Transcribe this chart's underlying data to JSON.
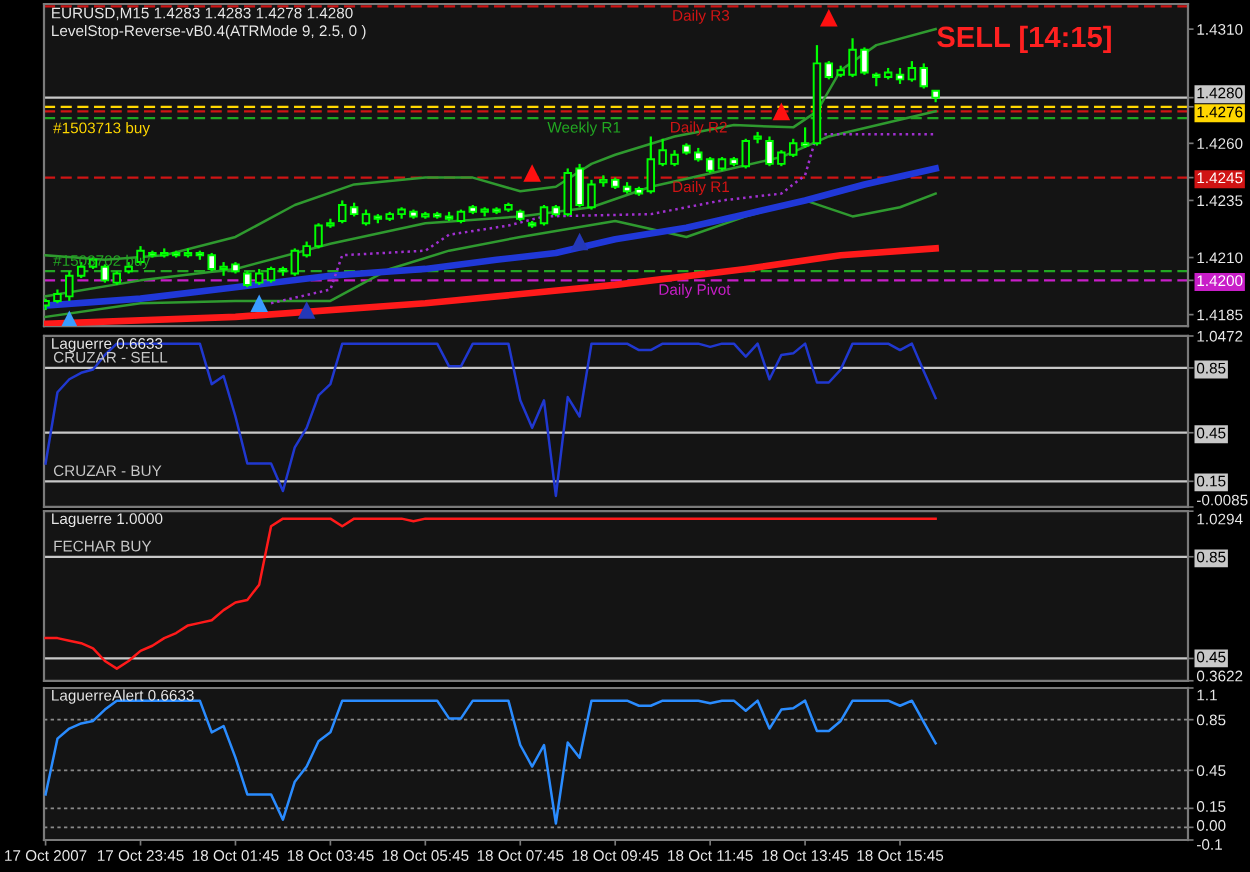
{
  "chart_data": [
    {
      "type": "candlestick",
      "title": "EURUSD,M15 1.4283 1.4283 1.4278 1.4280",
      "subtitle": "LevelStop-Reverse-vB0.4(ATRMode 9, 2.5, 0 )",
      "color": "#00ff00",
      "x": [
        "2007-10-17T21:45",
        "2007-10-17T22:00",
        "2007-10-17T22:15",
        "2007-10-17T22:30",
        "2007-10-17T22:45",
        "2007-10-17T23:00",
        "2007-10-17T23:15",
        "2007-10-17T23:30",
        "2007-10-17T23:45",
        "2007-10-18T00:00",
        "2007-10-18T00:15",
        "2007-10-18T00:30",
        "2007-10-18T00:45",
        "2007-10-18T01:00",
        "2007-10-18T01:15",
        "2007-10-18T01:30",
        "2007-10-18T01:45",
        "2007-10-18T02:00",
        "2007-10-18T02:15",
        "2007-10-18T02:30",
        "2007-10-18T02:45",
        "2007-10-18T03:00",
        "2007-10-18T03:15",
        "2007-10-18T03:30",
        "2007-10-18T03:45",
        "2007-10-18T04:00",
        "2007-10-18T04:15",
        "2007-10-18T04:30",
        "2007-10-18T04:45",
        "2007-10-18T05:00",
        "2007-10-18T05:15",
        "2007-10-18T05:30",
        "2007-10-18T05:45",
        "2007-10-18T06:00",
        "2007-10-18T06:15",
        "2007-10-18T06:30",
        "2007-10-18T06:45",
        "2007-10-18T07:00",
        "2007-10-18T07:15",
        "2007-10-18T07:30",
        "2007-10-18T07:45",
        "2007-10-18T08:00",
        "2007-10-18T08:15",
        "2007-10-18T08:30",
        "2007-10-18T08:45",
        "2007-10-18T09:00",
        "2007-10-18T09:15",
        "2007-10-18T09:30",
        "2007-10-18T09:45",
        "2007-10-18T10:00",
        "2007-10-18T10:15",
        "2007-10-18T10:30",
        "2007-10-18T10:45",
        "2007-10-18T11:00",
        "2007-10-18T11:15",
        "2007-10-18T11:30",
        "2007-10-18T11:45",
        "2007-10-18T12:00",
        "2007-10-18T12:15",
        "2007-10-18T12:30",
        "2007-10-18T12:45",
        "2007-10-18T13:00",
        "2007-10-18T13:15",
        "2007-10-18T13:30",
        "2007-10-18T13:45",
        "2007-10-18T14:00",
        "2007-10-18T14:15",
        "2007-10-18T14:30",
        "2007-10-18T14:45",
        "2007-10-18T15:00",
        "2007-10-18T15:15",
        "2007-10-18T15:30",
        "2007-10-18T15:45",
        "2007-10-18T16:00",
        "2007-10-18T16:15",
        "2007-10-18T16:30"
      ],
      "ohlc": [
        [
          1.4189,
          1.4192,
          1.4187,
          1.4191
        ],
        [
          1.4191,
          1.4196,
          1.419,
          1.4194
        ],
        [
          1.4193,
          1.4204,
          1.4191,
          1.4202
        ],
        [
          1.4202,
          1.4208,
          1.4201,
          1.4206
        ],
        [
          1.4206,
          1.421,
          1.4205,
          1.4209
        ],
        [
          1.4206,
          1.4207,
          1.4199,
          1.42
        ],
        [
          1.4199,
          1.4204,
          1.4198,
          1.4203
        ],
        [
          1.4204,
          1.4208,
          1.4203,
          1.4206
        ],
        [
          1.4208,
          1.4215,
          1.4207,
          1.4213
        ],
        [
          1.4212,
          1.4213,
          1.421,
          1.4211
        ],
        [
          1.4211,
          1.4214,
          1.421,
          1.4212
        ],
        [
          1.4212,
          1.4213,
          1.421,
          1.4211
        ],
        [
          1.4211,
          1.4214,
          1.421,
          1.4212
        ],
        [
          1.4212,
          1.4213,
          1.4209,
          1.4211
        ],
        [
          1.4211,
          1.4212,
          1.4204,
          1.4205
        ],
        [
          1.4205,
          1.4208,
          1.4202,
          1.4206
        ],
        [
          1.4207,
          1.4208,
          1.4203,
          1.4204
        ],
        [
          1.4203,
          1.4204,
          1.4197,
          1.4198
        ],
        [
          1.4199,
          1.4205,
          1.4198,
          1.4203
        ],
        [
          1.42,
          1.4206,
          1.4199,
          1.4205
        ],
        [
          1.4205,
          1.4206,
          1.4202,
          1.4204
        ],
        [
          1.4203,
          1.4214,
          1.4202,
          1.4213
        ],
        [
          1.4211,
          1.4217,
          1.421,
          1.4215
        ],
        [
          1.4215,
          1.4225,
          1.4214,
          1.4224
        ],
        [
          1.4224,
          1.4227,
          1.4223,
          1.4225
        ],
        [
          1.4226,
          1.4235,
          1.4225,
          1.4233
        ],
        [
          1.4232,
          1.4234,
          1.4228,
          1.4229
        ],
        [
          1.4225,
          1.4231,
          1.4224,
          1.4229
        ],
        [
          1.4228,
          1.4229,
          1.4225,
          1.4227
        ],
        [
          1.4227,
          1.423,
          1.4226,
          1.4229
        ],
        [
          1.4229,
          1.4232,
          1.4227,
          1.4231
        ],
        [
          1.423,
          1.4231,
          1.4227,
          1.4228
        ],
        [
          1.4228,
          1.423,
          1.4227,
          1.4229
        ],
        [
          1.4229,
          1.423,
          1.4227,
          1.4228
        ],
        [
          1.4228,
          1.423,
          1.4226,
          1.4227
        ],
        [
          1.4226,
          1.4231,
          1.4225,
          1.423
        ],
        [
          1.4232,
          1.4233,
          1.4229,
          1.423
        ],
        [
          1.423,
          1.4232,
          1.4228,
          1.4231
        ],
        [
          1.4231,
          1.4232,
          1.4229,
          1.423
        ],
        [
          1.4231,
          1.4234,
          1.423,
          1.4233
        ],
        [
          1.423,
          1.4231,
          1.4226,
          1.4227
        ],
        [
          1.4225,
          1.4226,
          1.4223,
          1.4224
        ],
        [
          1.4225,
          1.4233,
          1.4224,
          1.4232
        ],
        [
          1.4232,
          1.4233,
          1.4228,
          1.4229
        ],
        [
          1.4229,
          1.4249,
          1.4228,
          1.4247
        ],
        [
          1.4249,
          1.4251,
          1.4232,
          1.4233
        ],
        [
          1.4232,
          1.4244,
          1.4231,
          1.4242
        ],
        [
          1.4243,
          1.4246,
          1.4241,
          1.4244
        ],
        [
          1.4244,
          1.4245,
          1.424,
          1.4241
        ],
        [
          1.4241,
          1.4243,
          1.4238,
          1.4239
        ],
        [
          1.424,
          1.4241,
          1.4237,
          1.4238
        ],
        [
          1.4239,
          1.4263,
          1.4238,
          1.4253
        ],
        [
          1.4251,
          1.4262,
          1.425,
          1.4257
        ],
        [
          1.4251,
          1.4257,
          1.425,
          1.4255
        ],
        [
          1.4259,
          1.426,
          1.4255,
          1.4256
        ],
        [
          1.4256,
          1.4258,
          1.4252,
          1.4253
        ],
        [
          1.4253,
          1.4254,
          1.4247,
          1.4248
        ],
        [
          1.4249,
          1.4254,
          1.4248,
          1.4253
        ],
        [
          1.4253,
          1.4254,
          1.425,
          1.4251
        ],
        [
          1.425,
          1.4262,
          1.4249,
          1.4261
        ],
        [
          1.4262,
          1.4265,
          1.426,
          1.4263
        ],
        [
          1.4261,
          1.4263,
          1.425,
          1.4251
        ],
        [
          1.4251,
          1.4257,
          1.425,
          1.4256
        ],
        [
          1.4255,
          1.4262,
          1.4254,
          1.426
        ],
        [
          1.426,
          1.4267,
          1.4258,
          1.4259
        ],
        [
          1.426,
          1.4303,
          1.4259,
          1.4295
        ],
        [
          1.4295,
          1.4296,
          1.4288,
          1.4289
        ],
        [
          1.429,
          1.4294,
          1.4289,
          1.4292
        ],
        [
          1.429,
          1.4306,
          1.4289,
          1.4301
        ],
        [
          1.4301,
          1.4302,
          1.429,
          1.4291
        ],
        [
          1.429,
          1.4291,
          1.4285,
          1.4289
        ],
        [
          1.4289,
          1.4293,
          1.4288,
          1.4291
        ],
        [
          1.429,
          1.4293,
          1.4286,
          1.4288
        ],
        [
          1.4288,
          1.4296,
          1.4287,
          1.4293
        ],
        [
          1.4293,
          1.4295,
          1.4284,
          1.4285
        ],
        [
          1.4283,
          1.4283,
          1.4278,
          1.428
        ]
      ],
      "series": [
        {
          "type": "line",
          "color": "#2f9a2f",
          "x": [
            "2007-10-17T21:45",
            "2007-10-17T23:00",
            "2007-10-18T00:15",
            "2007-10-18T01:45",
            "2007-10-18T03:00",
            "2007-10-18T04:15",
            "2007-10-18T05:45",
            "2007-10-18T06:45",
            "2007-10-18T07:45",
            "2007-10-18T08:30",
            "2007-10-18T09:15",
            "2007-10-18T09:45",
            "2007-10-18T11:00",
            "2007-10-18T12:15",
            "2007-10-18T13:30",
            "2007-10-18T14:00",
            "2007-10-18T14:30",
            "2007-10-18T15:15",
            "2007-10-18T16:30"
          ],
          "values": [
            1.4211,
            1.4209,
            1.4211,
            1.4219,
            1.4233,
            1.4242,
            1.4245,
            1.4245,
            1.4239,
            1.4241,
            1.4251,
            1.4255,
            1.4263,
            1.4268,
            1.4267,
            1.4274,
            1.4292,
            1.4303,
            1.431
          ]
        },
        {
          "type": "line",
          "color": "#2f9a2f",
          "x": [
            "2007-10-17T21:45",
            "2007-10-17T23:45",
            "2007-10-18T01:45",
            "2007-10-18T03:45",
            "2007-10-18T05:45",
            "2007-10-18T07:45",
            "2007-10-18T09:15",
            "2007-10-18T10:30",
            "2007-10-18T12:00",
            "2007-10-18T13:15",
            "2007-10-18T14:15",
            "2007-10-18T16:30"
          ],
          "values": [
            1.4193,
            1.42,
            1.4205,
            1.4216,
            1.4225,
            1.4228,
            1.4232,
            1.4241,
            1.4248,
            1.4254,
            1.4263,
            1.4274
          ]
        },
        {
          "type": "line",
          "color": "#2f9a2f",
          "x": [
            "2007-10-17T21:45",
            "2007-10-17T23:45",
            "2007-10-18T01:45",
            "2007-10-18T03:45",
            "2007-10-18T05:00",
            "2007-10-18T06:15",
            "2007-10-18T07:45",
            "2007-10-18T09:45",
            "2007-10-18T11:15",
            "2007-10-18T12:30",
            "2007-10-18T13:45",
            "2007-10-18T14:45",
            "2007-10-18T15:45",
            "2007-10-18T16:30"
          ],
          "values": [
            1.4184,
            1.419,
            1.4191,
            1.4191,
            1.4205,
            1.4213,
            1.4219,
            1.4226,
            1.4219,
            1.4228,
            1.4235,
            1.4228,
            1.4232,
            1.4238
          ]
        },
        {
          "type": "line",
          "color": "#2038d8",
          "x": [
            "2007-10-17T21:45",
            "2007-10-17T23:45",
            "2007-10-18T01:45",
            "2007-10-18T03:45",
            "2007-10-18T05:45",
            "2007-10-18T07:15",
            "2007-10-18T08:30",
            "2007-10-18T09:45",
            "2007-10-18T11:15",
            "2007-10-18T12:30",
            "2007-10-18T13:45",
            "2007-10-18T15:00",
            "2007-10-18T16:30"
          ],
          "values": [
            1.4189,
            1.4192,
            1.4197,
            1.4202,
            1.4205,
            1.4209,
            1.4212,
            1.4218,
            1.4223,
            1.4229,
            1.4235,
            1.4242,
            1.4249
          ]
        },
        {
          "type": "line",
          "color": "#ff1a1a",
          "x": [
            "2007-10-17T21:45",
            "2007-10-18T01:45",
            "2007-10-18T05:45",
            "2007-10-18T09:45",
            "2007-10-18T12:30",
            "2007-10-18T14:30",
            "2007-10-18T16:30"
          ],
          "values": [
            1.4181,
            1.4184,
            1.419,
            1.4198,
            1.4205,
            1.4211,
            1.4214
          ]
        },
        {
          "type": "line",
          "color": "#a030d0",
          "line_style": "dotted",
          "x": [
            "2007-10-18T02:30",
            "2007-10-18T03:45",
            "2007-10-18T04:00",
            "2007-10-18T05:45",
            "2007-10-18T06:15",
            "2007-10-18T07:30",
            "2007-10-18T08:15",
            "2007-10-18T10:30",
            "2007-10-18T12:00",
            "2007-10-18T13:15",
            "2007-10-18T13:45",
            "2007-10-18T14:00",
            "2007-10-18T16:30"
          ],
          "values": [
            1.419,
            1.4196,
            1.4211,
            1.4213,
            1.422,
            1.4224,
            1.4228,
            1.4229,
            1.4235,
            1.4238,
            1.4246,
            1.4264,
            1.4264
          ]
        },
        {
          "type": "scatter",
          "marker": "triangle",
          "color": "#ff1010",
          "x": [
            "2007-10-18T08:00",
            "2007-10-18T13:15",
            "2007-10-18T14:15"
          ],
          "values": [
            1.4247,
            1.4274,
            1.4315
          ]
        },
        {
          "type": "scatter",
          "marker": "triangle",
          "color": "#3a9cff",
          "x": [
            "2007-10-17T22:15",
            "2007-10-18T02:15"
          ],
          "values": [
            1.4183,
            1.419
          ]
        },
        {
          "type": "scatter",
          "marker": "triangle",
          "color": "#2438b8",
          "x": [
            "2007-10-18T03:15",
            "2007-10-18T09:00"
          ],
          "values": [
            1.4187,
            1.4217
          ]
        }
      ],
      "ref_lines": [
        {
          "axis": "y",
          "value": 1.432,
          "label": "Daily R3",
          "color": "#d01414",
          "line_style": "dashed"
        },
        {
          "axis": "y",
          "value": 1.4276,
          "label": "#1503713 buy",
          "color": "#ffd700",
          "line_style": "dashed"
        },
        {
          "axis": "y",
          "value": 1.4274,
          "label": "Daily R2",
          "color": "#d01414",
          "line_style": "dashed"
        },
        {
          "axis": "y",
          "value": 1.4271,
          "label": "Weekly R1",
          "color": "#22a822",
          "line_style": "dashed"
        },
        {
          "axis": "y",
          "value": 1.4245,
          "label": "Daily R1",
          "color": "#d01414",
          "line_style": "dashed"
        },
        {
          "axis": "y",
          "value": 1.4204,
          "label": "#1503702 buy",
          "color": "#22a822",
          "line_style": "dashed"
        },
        {
          "axis": "y",
          "value": 1.42,
          "label": "Daily Pivot",
          "color": "#c81ec8",
          "line_style": "dashed"
        },
        {
          "axis": "y",
          "value": 1.428,
          "color": "#c8c8c8"
        }
      ],
      "annotations": [
        "SELL [14:15]"
      ],
      "xlim": [
        "2007-10-17T21:43",
        "2007-10-18T21:49"
      ],
      "ylim": [
        1.418,
        1.4321
      ],
      "yticks": [
        {
          "value": 1.431,
          "label": "1.4310"
        },
        {
          "value": 1.426,
          "label": "1.4260"
        },
        1.4235,
        {
          "value": 1.421,
          "label": "1.4210"
        },
        1.4185,
        {
          "value": 1.428,
          "label": "1.4280"
        },
        1.4276,
        1.4245,
        {
          "value": 1.42,
          "label": "1.4200"
        }
      ],
      "tick_labels": "y"
    },
    {
      "type": "line",
      "title": "Laguerre 0.6633",
      "x": [
        "2007-10-17T21:45",
        "2007-10-17T22:00",
        "2007-10-17T22:15",
        "2007-10-17T22:30",
        "2007-10-17T22:45",
        "2007-10-17T23:00",
        "2007-10-17T23:15",
        "2007-10-17T23:30",
        "2007-10-17T23:45",
        "2007-10-18T00:00",
        "2007-10-18T00:15",
        "2007-10-18T00:30",
        "2007-10-18T00:45",
        "2007-10-18T01:00",
        "2007-10-18T01:15",
        "2007-10-18T01:30",
        "2007-10-18T01:45",
        "2007-10-18T02:00",
        "2007-10-18T02:15",
        "2007-10-18T02:30",
        "2007-10-18T02:45",
        "2007-10-18T03:00",
        "2007-10-18T03:15",
        "2007-10-18T03:30",
        "2007-10-18T03:45",
        "2007-10-18T04:00",
        "2007-10-18T04:15",
        "2007-10-18T04:30",
        "2007-10-18T04:45",
        "2007-10-18T05:00",
        "2007-10-18T05:15",
        "2007-10-18T05:30",
        "2007-10-18T05:45",
        "2007-10-18T06:00",
        "2007-10-18T06:15",
        "2007-10-18T06:30",
        "2007-10-18T06:45",
        "2007-10-18T07:00",
        "2007-10-18T07:15",
        "2007-10-18T07:30",
        "2007-10-18T07:45",
        "2007-10-18T08:00",
        "2007-10-18T08:15",
        "2007-10-18T08:30",
        "2007-10-18T08:45",
        "2007-10-18T09:00",
        "2007-10-18T09:15",
        "2007-10-18T09:30",
        "2007-10-18T09:45",
        "2007-10-18T10:00",
        "2007-10-18T10:15",
        "2007-10-18T10:30",
        "2007-10-18T10:45",
        "2007-10-18T11:00",
        "2007-10-18T11:15",
        "2007-10-18T11:30",
        "2007-10-18T11:45",
        "2007-10-18T12:00",
        "2007-10-18T12:15",
        "2007-10-18T12:30",
        "2007-10-18T12:45",
        "2007-10-18T13:00",
        "2007-10-18T13:15",
        "2007-10-18T13:30",
        "2007-10-18T13:45",
        "2007-10-18T14:00",
        "2007-10-18T14:15",
        "2007-10-18T14:30",
        "2007-10-18T14:45",
        "2007-10-18T15:00",
        "2007-10-18T15:15",
        "2007-10-18T15:30",
        "2007-10-18T15:45",
        "2007-10-18T16:00",
        "2007-10-18T16:15",
        "2007-10-18T16:30"
      ],
      "series": [
        {
          "color": "#2038d0",
          "values": [
            0.26,
            0.7,
            0.78,
            0.82,
            0.84,
            0.93,
            1.0,
            1.0,
            1.0,
            1.0,
            1.0,
            1.0,
            1.0,
            1.0,
            0.75,
            0.8,
            0.55,
            0.26,
            0.26,
            0.26,
            0.09,
            0.36,
            0.48,
            0.68,
            0.75,
            1.0,
            1.0,
            1.0,
            1.0,
            1.0,
            1.0,
            1.0,
            1.0,
            1.0,
            0.86,
            0.86,
            1.0,
            1.0,
            1.0,
            1.0,
            0.65,
            0.48,
            0.65,
            0.06,
            0.67,
            0.55,
            1.0,
            1.0,
            1.0,
            1.0,
            0.96,
            0.96,
            1.0,
            1.0,
            1.0,
            1.0,
            0.98,
            1.0,
            1.0,
            0.92,
            1.0,
            0.78,
            0.93,
            0.94,
            1.0,
            0.76,
            0.76,
            0.84,
            1.0,
            1.0,
            1.0,
            1.0,
            0.96,
            1.0,
            0.83,
            0.6633
          ]
        }
      ],
      "ref_lines": [
        {
          "axis": "y",
          "value": 0.85,
          "label": "CRUZAR - SELL",
          "color": "#c8c8c8"
        },
        {
          "axis": "y",
          "value": 0.45,
          "color": "#c8c8c8"
        },
        {
          "axis": "y",
          "value": 0.15,
          "label": "CRUZAR - BUY",
          "color": "#c8c8c8"
        }
      ],
      "xlim": [
        "2007-10-17T21:43",
        "2007-10-18T21:49"
      ],
      "ylim": [
        -0.0085,
        1.0472
      ],
      "yticks": [
        1.0472,
        0.85,
        0.45,
        0.15,
        -0.0085
      ],
      "tick_labels": "y"
    },
    {
      "type": "line",
      "title": "Laguerre 1.0000",
      "x": [
        "2007-10-17T21:45",
        "2007-10-17T22:00",
        "2007-10-17T22:15",
        "2007-10-17T22:30",
        "2007-10-17T22:45",
        "2007-10-17T23:00",
        "2007-10-17T23:15",
        "2007-10-17T23:30",
        "2007-10-17T23:45",
        "2007-10-18T00:00",
        "2007-10-18T00:15",
        "2007-10-18T00:30",
        "2007-10-18T00:45",
        "2007-10-18T01:00",
        "2007-10-18T01:15",
        "2007-10-18T01:30",
        "2007-10-18T01:45",
        "2007-10-18T02:00",
        "2007-10-18T02:15",
        "2007-10-18T02:30",
        "2007-10-18T02:45",
        "2007-10-18T03:00",
        "2007-10-18T03:15",
        "2007-10-18T03:30",
        "2007-10-18T03:45",
        "2007-10-18T04:00",
        "2007-10-18T04:15",
        "2007-10-18T04:30",
        "2007-10-18T04:45",
        "2007-10-18T05:00",
        "2007-10-18T05:15",
        "2007-10-18T05:30",
        "2007-10-18T05:45",
        "2007-10-18T06:00",
        "2007-10-18T06:15",
        "2007-10-18T06:30",
        "2007-10-18T06:45",
        "2007-10-18T07:00",
        "2007-10-18T07:15",
        "2007-10-18T07:30",
        "2007-10-18T07:45",
        "2007-10-18T08:00",
        "2007-10-18T08:15",
        "2007-10-18T08:30",
        "2007-10-18T08:45",
        "2007-10-18T09:00",
        "2007-10-18T09:15",
        "2007-10-18T09:30",
        "2007-10-18T09:45",
        "2007-10-18T10:00",
        "2007-10-18T10:15",
        "2007-10-18T10:30",
        "2007-10-18T10:45",
        "2007-10-18T11:00",
        "2007-10-18T11:15",
        "2007-10-18T11:30",
        "2007-10-18T11:45",
        "2007-10-18T12:00",
        "2007-10-18T12:15",
        "2007-10-18T12:30",
        "2007-10-18T12:45",
        "2007-10-18T13:00",
        "2007-10-18T13:15",
        "2007-10-18T13:30",
        "2007-10-18T13:45",
        "2007-10-18T14:00",
        "2007-10-18T14:15",
        "2007-10-18T14:30",
        "2007-10-18T14:45",
        "2007-10-18T15:00",
        "2007-10-18T15:15",
        "2007-10-18T15:30",
        "2007-10-18T15:45",
        "2007-10-18T16:00",
        "2007-10-18T16:15",
        "2007-10-18T16:30"
      ],
      "series": [
        {
          "color": "#ff1a1a",
          "values": [
            0.53,
            0.53,
            0.52,
            0.51,
            0.49,
            0.44,
            0.41,
            0.44,
            0.48,
            0.5,
            0.53,
            0.55,
            0.58,
            0.59,
            0.6,
            0.64,
            0.67,
            0.68,
            0.74,
            0.97,
            1.0,
            1.0,
            1.0,
            1.0,
            1.0,
            0.97,
            1.0,
            1.0,
            1.0,
            1.0,
            1.0,
            0.99,
            1.0,
            1.0,
            1.0,
            1.0,
            1.0,
            1.0,
            1.0,
            1.0,
            1.0,
            1.0,
            1.0,
            1.0,
            1.0,
            1.0,
            1.0,
            1.0,
            1.0,
            1.0,
            1.0,
            1.0,
            1.0,
            1.0,
            1.0,
            1.0,
            1.0,
            1.0,
            1.0,
            1.0,
            1.0,
            1.0,
            1.0,
            1.0,
            1.0,
            1.0,
            1.0,
            1.0,
            1.0,
            1.0,
            1.0,
            1.0,
            1.0,
            1.0,
            1.0,
            1.0
          ]
        }
      ],
      "ref_lines": [
        {
          "axis": "y",
          "value": 0.85,
          "label": "FECHAR BUY",
          "color": "#c8c8c8"
        },
        {
          "axis": "y",
          "value": 0.45,
          "color": "#c8c8c8"
        }
      ],
      "xlim": [
        "2007-10-17T21:43",
        "2007-10-18T21:49"
      ],
      "ylim": [
        0.3622,
        1.0294
      ],
      "yticks": [
        1.0294,
        0.85,
        0.45,
        0.3622
      ],
      "tick_labels": "y"
    },
    {
      "type": "line",
      "title": "LaguerreAlert 0.6633",
      "x": [
        "2007-10-17T21:45",
        "2007-10-17T22:00",
        "2007-10-17T22:15",
        "2007-10-17T22:30",
        "2007-10-17T22:45",
        "2007-10-17T23:00",
        "2007-10-17T23:15",
        "2007-10-17T23:30",
        "2007-10-17T23:45",
        "2007-10-18T00:00",
        "2007-10-18T00:15",
        "2007-10-18T00:30",
        "2007-10-18T00:45",
        "2007-10-18T01:00",
        "2007-10-18T01:15",
        "2007-10-18T01:30",
        "2007-10-18T01:45",
        "2007-10-18T02:00",
        "2007-10-18T02:15",
        "2007-10-18T02:30",
        "2007-10-18T02:45",
        "2007-10-18T03:00",
        "2007-10-18T03:15",
        "2007-10-18T03:30",
        "2007-10-18T03:45",
        "2007-10-18T04:00",
        "2007-10-18T04:15",
        "2007-10-18T04:30",
        "2007-10-18T04:45",
        "2007-10-18T05:00",
        "2007-10-18T05:15",
        "2007-10-18T05:30",
        "2007-10-18T05:45",
        "2007-10-18T06:00",
        "2007-10-18T06:15",
        "2007-10-18T06:30",
        "2007-10-18T06:45",
        "2007-10-18T07:00",
        "2007-10-18T07:15",
        "2007-10-18T07:30",
        "2007-10-18T07:45",
        "2007-10-18T08:00",
        "2007-10-18T08:15",
        "2007-10-18T08:30",
        "2007-10-18T08:45",
        "2007-10-18T09:00",
        "2007-10-18T09:15",
        "2007-10-18T09:30",
        "2007-10-18T09:45",
        "2007-10-18T10:00",
        "2007-10-18T10:15",
        "2007-10-18T10:30",
        "2007-10-18T10:45",
        "2007-10-18T11:00",
        "2007-10-18T11:15",
        "2007-10-18T11:30",
        "2007-10-18T11:45",
        "2007-10-18T12:00",
        "2007-10-18T12:15",
        "2007-10-18T12:30",
        "2007-10-18T12:45",
        "2007-10-18T13:00",
        "2007-10-18T13:15",
        "2007-10-18T13:30",
        "2007-10-18T13:45",
        "2007-10-18T14:00",
        "2007-10-18T14:15",
        "2007-10-18T14:30",
        "2007-10-18T14:45",
        "2007-10-18T15:00",
        "2007-10-18T15:15",
        "2007-10-18T15:30",
        "2007-10-18T15:45",
        "2007-10-18T16:00",
        "2007-10-18T16:15",
        "2007-10-18T16:30"
      ],
      "series": [
        {
          "color": "#2a8cff",
          "values": [
            0.26,
            0.7,
            0.78,
            0.82,
            0.84,
            0.93,
            1.0,
            1.0,
            1.0,
            1.0,
            1.0,
            1.0,
            1.0,
            1.0,
            0.75,
            0.8,
            0.55,
            0.26,
            0.26,
            0.26,
            0.06,
            0.36,
            0.48,
            0.68,
            0.75,
            1.0,
            1.0,
            1.0,
            1.0,
            1.0,
            1.0,
            1.0,
            1.0,
            1.0,
            0.86,
            0.86,
            1.0,
            1.0,
            1.0,
            1.0,
            0.65,
            0.48,
            0.65,
            0.03,
            0.67,
            0.55,
            1.0,
            1.0,
            1.0,
            1.0,
            0.96,
            0.96,
            1.0,
            1.0,
            1.0,
            1.0,
            0.98,
            1.0,
            1.0,
            0.92,
            1.0,
            0.78,
            0.93,
            0.94,
            1.0,
            0.76,
            0.76,
            0.84,
            1.0,
            1.0,
            1.0,
            1.0,
            0.96,
            1.0,
            0.83,
            0.6633
          ]
        }
      ],
      "xlim": [
        "2007-10-17T21:43",
        "2007-10-18T21:49"
      ],
      "ylim": [
        -0.1,
        1.1
      ],
      "xticks": [
        {
          "value": "2007-10-17T21:45",
          "label": "17 Oct 2007"
        },
        {
          "value": "2007-10-17T23:45",
          "label": "17 Oct 23:45"
        },
        {
          "value": "2007-10-18T01:45",
          "label": "18 Oct 01:45"
        },
        {
          "value": "2007-10-18T03:45",
          "label": "18 Oct 03:45"
        },
        {
          "value": "2007-10-18T05:45",
          "label": "18 Oct 05:45"
        },
        {
          "value": "2007-10-18T07:45",
          "label": "18 Oct 07:45"
        },
        {
          "value": "2007-10-18T09:45",
          "label": "18 Oct 09:45"
        },
        {
          "value": "2007-10-18T11:45",
          "label": "18 Oct 11:45"
        },
        {
          "value": "2007-10-18T13:45",
          "label": "18 Oct 13:45"
        },
        {
          "value": "2007-10-18T15:45",
          "label": "18 Oct 15:45"
        }
      ],
      "yticks": [
        1.1,
        0.85,
        0.45,
        0.15,
        {
          "value": 0,
          "label": "0.00"
        },
        -0.1
      ],
      "grid": "y"
    }
  ]
}
